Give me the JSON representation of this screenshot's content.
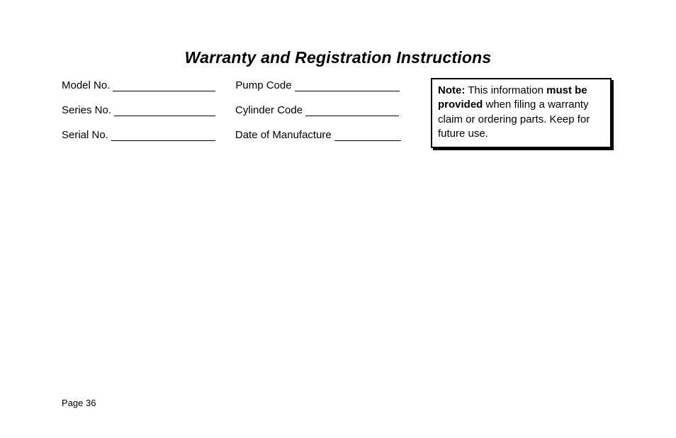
{
  "title": "Warranty and Registration Instructions",
  "fields": {
    "left": [
      {
        "label": "Model No.",
        "blank_width": 145
      },
      {
        "label": "Series No.",
        "blank_width": 143
      },
      {
        "label": "Serial No.",
        "blank_width": 147
      }
    ],
    "right": [
      {
        "label": "Pump Code",
        "blank_width": 148
      },
      {
        "label": "Cylinder Code",
        "blank_width": 132
      },
      {
        "label": "Date of Manufacture",
        "blank_width": 94
      }
    ]
  },
  "note": {
    "bold1": "Note:",
    "text1": "  This information ",
    "bold2": "must be provided",
    "text2": " when filing a warranty claim or ordering parts.  Keep for future use."
  },
  "page_number": "Page 36"
}
